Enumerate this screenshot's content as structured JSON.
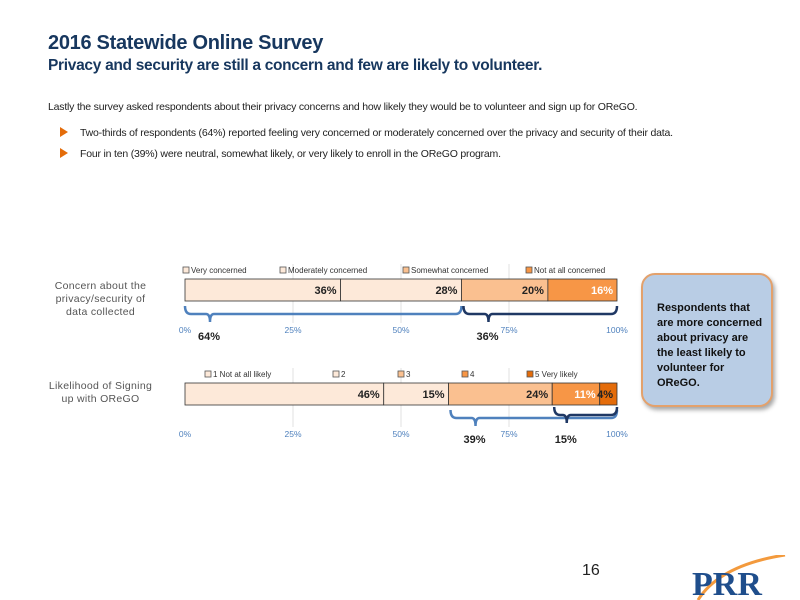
{
  "header": {
    "title": "2016 Statewide Online Survey",
    "subtitle": "Privacy and security are still a concern and few are likely to volunteer."
  },
  "intro": "Lastly the survey asked respondents about their privacy concerns and how likely they would be to volunteer and sign up for OReGO.",
  "bullets": [
    "Two-thirds of respondents (64%) reported feeling very concerned or moderately concerned over the privacy and security of their data.",
    "Four in ten (39%) were neutral, somewhat likely, or very likely to enroll in the OReGO program."
  ],
  "callout": "Respondents that are more concerned about privacy are the least likely to volunteer for OReGO.",
  "page_number": "16",
  "logo_text": "PRR",
  "colors": {
    "title": "#17375e",
    "brace_blue": "#4f81bd",
    "brace_dark": "#1f3864",
    "c1": "#fde9d9",
    "c2": "#fde9d9",
    "c3": "#fac090",
    "c4": "#f79646",
    "c5": "#e46c0a",
    "callout_bg": "#b9cde5"
  },
  "chart_data": [
    {
      "type": "bar",
      "stacked": true,
      "orientation": "horizontal",
      "category": "Concern about the privacy/security of data collected",
      "xlim": [
        0,
        100
      ],
      "ticks": [
        "0%",
        "25%",
        "50%",
        "75%",
        "100%"
      ],
      "legend_position": "top",
      "series": [
        {
          "name": "Very concerned",
          "value": 36,
          "label": "36%",
          "color": "#fde9d9"
        },
        {
          "name": "Moderately concerned",
          "value": 28,
          "label": "28%",
          "color": "#fde9d9"
        },
        {
          "name": "Somewhat concerned",
          "value": 20,
          "label": "20%",
          "color": "#fac090"
        },
        {
          "name": "Not at all concerned",
          "value": 16,
          "label": "16%",
          "color": "#f79646",
          "label_color": "#ffffff"
        }
      ],
      "annotations": [
        {
          "label": "64%",
          "from": 0,
          "to": 64,
          "color": "#4f81bd"
        },
        {
          "label": "36%",
          "from": 64,
          "to": 100,
          "color": "#1f3864"
        }
      ]
    },
    {
      "type": "bar",
      "stacked": true,
      "orientation": "horizontal",
      "category": "Likelihood of Signing up with OReGO",
      "xlim": [
        0,
        100
      ],
      "ticks": [
        "0%",
        "25%",
        "50%",
        "75%",
        "100%"
      ],
      "legend_position": "top",
      "series": [
        {
          "name": "1 Not at all likely",
          "value": 46,
          "label": "46%",
          "color": "#fde9d9"
        },
        {
          "name": "2",
          "value": 15,
          "label": "15%",
          "color": "#fde9d9"
        },
        {
          "name": "3",
          "value": 24,
          "label": "24%",
          "color": "#fac090"
        },
        {
          "name": "4",
          "value": 11,
          "label": "11%",
          "color": "#f79646",
          "label_color": "#ffffff"
        },
        {
          "name": "5 Very likely",
          "value": 4,
          "label": "4%",
          "color": "#e46c0a"
        }
      ],
      "annotations": [
        {
          "label": "39%",
          "from": 61,
          "to": 100,
          "color": "#4f81bd"
        },
        {
          "label": "15%",
          "from": 85,
          "to": 100,
          "color": "#1f3864"
        }
      ]
    }
  ]
}
